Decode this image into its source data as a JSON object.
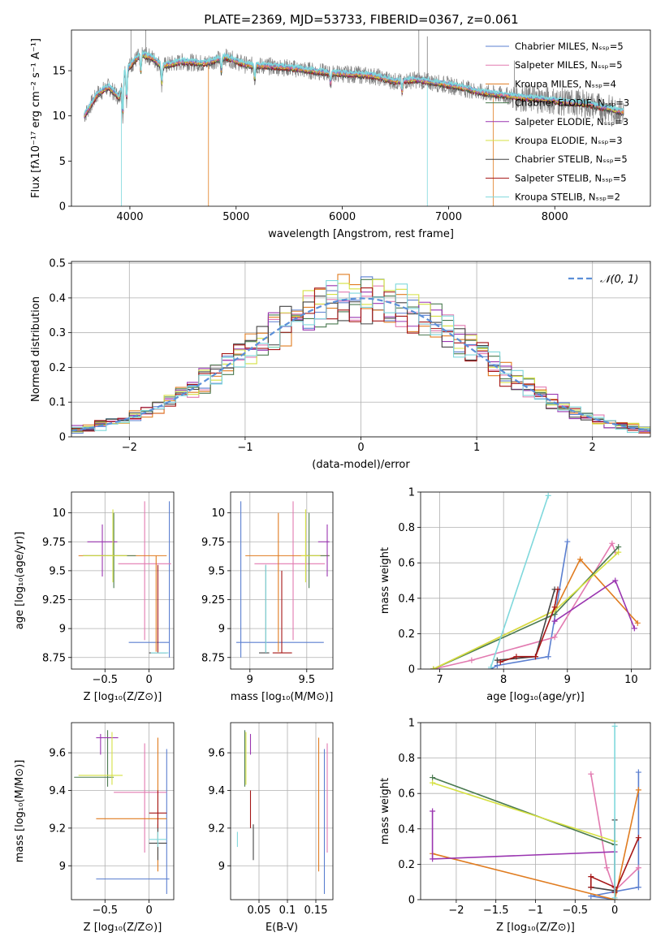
{
  "figure": {
    "title": "PLATE=2369, MJD=53733, FIBERID=0367, z=0.061"
  },
  "colors": {
    "c_miles": "#5b7fd0",
    "s_miles": "#e27ab0",
    "k_miles": "#e07c20",
    "c_elodie": "#4a7a50",
    "s_elodie": "#9a35b0",
    "k_elodie": "#d5e040",
    "c_stelib": "#444444",
    "s_stelib": "#a51616",
    "k_stelib": "#7fd8dc",
    "data": "#808080",
    "normal": "#5b8fd8"
  },
  "chart_data": [
    {
      "id": "spectrum",
      "type": "line",
      "xlabel": "wavelength [Angstrom, rest frame]",
      "ylabel": "Flux [fλ10⁻¹⁷ erg cm⁻² s⁻¹ A⁻¹]",
      "xlim": [
        3450,
        8900
      ],
      "ylim": [
        0,
        19.5
      ],
      "xticks": [
        4000,
        5000,
        6000,
        7000,
        8000
      ],
      "yticks": [
        0,
        5,
        10,
        15
      ],
      "grid": false,
      "legend_position": "top-right",
      "legend": [
        {
          "label": "Chabrier MILES, Nₛₛₚ=5",
          "color_key": "c_miles"
        },
        {
          "label": "Salpeter MILES, Nₛₛₚ=5",
          "color_key": "s_miles"
        },
        {
          "label": "Kroupa MILES, Nₛₛₚ=4",
          "color_key": "k_miles"
        },
        {
          "label": "Chabrier ELODIE, Nₛₛₚ=3",
          "color_key": "c_elodie"
        },
        {
          "label": "Salpeter ELODIE, Nₛₛₚ=3",
          "color_key": "s_elodie"
        },
        {
          "label": "Kroupa ELODIE, Nₛₛₚ=3",
          "color_key": "k_elodie"
        },
        {
          "label": "Chabrier STELIB, Nₛₛₚ=5",
          "color_key": "c_stelib"
        },
        {
          "label": "Salpeter STELIB, Nₛₛₚ=5",
          "color_key": "s_stelib"
        },
        {
          "label": "Kroupa STELIB, Nₛₛₚ=2",
          "color_key": "k_stelib"
        }
      ],
      "continuum_x": [
        3570,
        3700,
        3800,
        3900,
        3950,
        4000,
        4100,
        4200,
        4300,
        4500,
        4700,
        4900,
        5100,
        5300,
        5500,
        5700,
        5900,
        6100,
        6300,
        6500,
        6700,
        6900,
        7100,
        7300,
        7500,
        7700,
        7900,
        8100,
        8300,
        8500,
        8650
      ],
      "continuum_y": [
        10,
        12.5,
        13.2,
        12,
        15,
        15.5,
        16.8,
        16.5,
        15.5,
        16,
        15.8,
        16.5,
        15.6,
        15.5,
        15.3,
        15,
        14.7,
        14.6,
        14.4,
        13.8,
        14,
        13.6,
        13.2,
        12.6,
        12.3,
        12.0,
        11.8,
        11.5,
        11.3,
        10.8,
        10.4
      ]
    },
    {
      "id": "residuals",
      "type": "step",
      "xlabel": "(data-model)/error",
      "ylabel": "Normed distribution",
      "xlim": [
        -2.5,
        2.5
      ],
      "ylim": [
        0,
        0.505
      ],
      "xticks": [
        -2,
        -1,
        0,
        1,
        2
      ],
      "yticks": [
        0.0,
        0.1,
        0.2,
        0.3,
        0.4,
        0.5
      ],
      "grid": true,
      "legend_position": "top-right",
      "legend": [
        {
          "label": "𝒩(0, 1)",
          "color_key": "normal",
          "style": "dashed"
        }
      ],
      "bin_width": 0.1,
      "series_color_keys": [
        "c_miles",
        "s_miles",
        "k_miles",
        "c_elodie",
        "s_elodie",
        "k_elodie",
        "c_stelib",
        "s_stelib",
        "k_stelib"
      ]
    },
    {
      "id": "age_vs_z",
      "type": "errorbar",
      "xlabel": "Z [log₁₀(Z/Z⊙)]",
      "ylabel": "age  [log₁₀(age/yr)]",
      "xlim": [
        -0.88,
        0.28
      ],
      "ylim": [
        8.65,
        10.18
      ],
      "xticks": [
        -0.5,
        0.0
      ],
      "yticks": [
        8.75,
        9.0,
        9.25,
        9.5,
        9.75,
        10.0
      ],
      "grid": true,
      "points": [
        {
          "color_key": "c_miles",
          "x": 0.0,
          "xerr": 0.23,
          "y": 8.88,
          "yerr": 0,
          "ylow": 8.75,
          "yhigh": 10.1,
          "xc": 0.23
        },
        {
          "color_key": "s_miles",
          "x": -0.05,
          "xerr": 0.3,
          "y": 9.56,
          "ylow": 8.9,
          "yhigh": 10.1,
          "xc": -0.05
        },
        {
          "color_key": "k_miles",
          "x": -0.3,
          "xerr": 0.5,
          "y": 9.63,
          "ylow": 8.8,
          "yhigh": 9.63,
          "xc": 0.08
        },
        {
          "color_key": "c_elodie",
          "x": -0.45,
          "xerr": 0.3,
          "y": 9.63,
          "ylow": 9.35,
          "yhigh": 10.0,
          "xc": -0.4
        },
        {
          "color_key": "s_elodie",
          "x": -0.53,
          "xerr": 0.17,
          "y": 9.75,
          "ylow": 9.45,
          "yhigh": 9.9,
          "xc": -0.53
        },
        {
          "color_key": "k_elodie",
          "x": -0.5,
          "xerr": 0.25,
          "y": 9.63,
          "ylow": 9.4,
          "yhigh": 10.03,
          "xc": -0.41
        },
        {
          "color_key": "c_stelib",
          "x": 0.1,
          "xerr": 0.1,
          "y": 8.79,
          "ylow": 8.79,
          "yhigh": 8.79,
          "xc": 0.1
        },
        {
          "color_key": "s_stelib",
          "x": 0.1,
          "xerr": 0.0,
          "y": 8.79,
          "ylow": 8.79,
          "yhigh": 9.55,
          "xc": 0.1
        },
        {
          "color_key": "k_stelib",
          "x": 0.12,
          "xerr": 0.1,
          "y": 8.79,
          "ylow": 8.79,
          "yhigh": 8.79,
          "xc": 0.12
        }
      ]
    },
    {
      "id": "age_vs_mass",
      "type": "errorbar",
      "xlabel": "mass [log₁₀(M/M⊙)]",
      "ylabel": "",
      "xlim": [
        8.83,
        9.73
      ],
      "ylim": [
        8.65,
        10.18
      ],
      "xticks": [
        9.0,
        9.5
      ],
      "yticks": [
        8.75,
        9.0,
        9.25,
        9.5,
        9.75,
        10.0
      ],
      "grid": true,
      "points": [
        {
          "color_key": "c_miles",
          "xlow": 8.88,
          "xhigh": 9.65,
          "y": 8.88,
          "xc": 8.92,
          "ylow": 8.75,
          "yhigh": 10.1
        },
        {
          "color_key": "s_miles",
          "xlow": 9.04,
          "xhigh": 9.66,
          "y": 9.56,
          "xc": 9.38,
          "ylow": 8.9,
          "yhigh": 10.1
        },
        {
          "color_key": "k_miles",
          "xlow": 8.96,
          "xhigh": 9.7,
          "y": 9.63,
          "xc": 9.25,
          "ylow": 8.8,
          "yhigh": 10.0
        },
        {
          "color_key": "c_elodie",
          "xlow": 9.5,
          "xhigh": 9.7,
          "y": 9.63,
          "xc": 9.52,
          "ylow": 9.35,
          "yhigh": 10.0
        },
        {
          "color_key": "s_elodie",
          "xlow": 9.6,
          "xhigh": 9.7,
          "y": 9.75,
          "xc": 9.68,
          "ylow": 9.45,
          "yhigh": 9.9
        },
        {
          "color_key": "k_elodie",
          "xlow": 9.45,
          "xhigh": 9.62,
          "y": 9.63,
          "xc": 9.49,
          "ylow": 9.4,
          "yhigh": 10.03
        },
        {
          "color_key": "c_stelib",
          "xlow": 9.08,
          "xhigh": 9.17,
          "y": 8.79,
          "xc": 9.14,
          "ylow": 8.79,
          "yhigh": 9.55
        },
        {
          "color_key": "s_stelib",
          "xlow": 9.2,
          "xhigh": 9.37,
          "y": 8.79,
          "xc": 9.28,
          "ylow": 8.79,
          "yhigh": 9.5
        },
        {
          "color_key": "k_stelib",
          "xlow": 9.14,
          "xhigh": 9.14,
          "y": 8.79,
          "xc": 9.14,
          "ylow": 8.79,
          "yhigh": 9.55
        }
      ]
    },
    {
      "id": "mass_weight_vs_age",
      "type": "line",
      "xlabel": "age  [log₁₀(age/yr)]",
      "ylabel": "mass weight",
      "xlim": [
        6.7,
        10.3
      ],
      "ylim": [
        0,
        1.0
      ],
      "xticks": [
        7,
        8,
        9,
        10
      ],
      "yticks": [
        0.0,
        0.2,
        0.4,
        0.6,
        0.8,
        1.0
      ],
      "grid": true,
      "series": [
        {
          "color_key": "c_miles",
          "x": [
            7.8,
            7.9,
            8.7,
            9.0
          ],
          "y": [
            0.0,
            0.02,
            0.07,
            0.72
          ]
        },
        {
          "color_key": "s_miles",
          "x": [
            6.9,
            7.5,
            8.8,
            9.7,
            9.75
          ],
          "y": [
            0.0,
            0.05,
            0.18,
            0.71,
            0.66
          ]
        },
        {
          "color_key": "k_miles",
          "x": [
            6.9,
            8.8,
            9.2,
            10.1
          ],
          "y": [
            0.0,
            0.33,
            0.62,
            0.26
          ]
        },
        {
          "color_key": "c_elodie",
          "x": [
            6.9,
            8.8,
            9.8
          ],
          "y": [
            0.0,
            0.31,
            0.69
          ]
        },
        {
          "color_key": "s_elodie",
          "x": [
            8.8,
            9.75,
            10.05
          ],
          "y": [
            0.27,
            0.5,
            0.23
          ]
        },
        {
          "color_key": "k_elodie",
          "x": [
            6.9,
            8.8,
            9.8
          ],
          "y": [
            0.0,
            0.33,
            0.66
          ]
        },
        {
          "color_key": "c_stelib",
          "x": [
            7.9,
            8.5,
            8.8
          ],
          "y": [
            0.05,
            0.07,
            0.45
          ]
        },
        {
          "color_key": "s_stelib",
          "x": [
            7.95,
            8.2,
            8.5,
            8.8,
            8.85
          ],
          "y": [
            0.04,
            0.07,
            0.07,
            0.35,
            0.45
          ]
        },
        {
          "color_key": "k_stelib",
          "x": [
            7.8,
            8.7
          ],
          "y": [
            0.01,
            0.98
          ]
        }
      ]
    },
    {
      "id": "mass_vs_z",
      "type": "errorbar",
      "xlabel": "Z [log₁₀(Z/Z⊙)]",
      "ylabel": "mass [log₁₀(M/M⊙)]",
      "xlim": [
        -0.88,
        0.28
      ],
      "ylim": [
        8.82,
        9.76
      ],
      "xticks": [
        -0.5,
        0.0
      ],
      "yticks": [
        9.0,
        9.2,
        9.4,
        9.6
      ],
      "grid": true,
      "points": [
        {
          "color_key": "c_miles",
          "xlow": -0.6,
          "xhigh": 0.23,
          "y": 8.93,
          "xc": 0.2,
          "ylow": 8.85,
          "yhigh": 9.62
        },
        {
          "color_key": "s_miles",
          "xlow": -0.4,
          "xhigh": 0.2,
          "y": 9.39,
          "xc": -0.05,
          "ylow": 9.07,
          "yhigh": 9.65
        },
        {
          "color_key": "k_miles",
          "xlow": -0.6,
          "xhigh": 0.2,
          "y": 9.25,
          "xc": 0.1,
          "ylow": 8.97,
          "yhigh": 9.68
        },
        {
          "color_key": "c_elodie",
          "xlow": -0.85,
          "xhigh": -0.4,
          "y": 9.47,
          "xc": -0.47,
          "ylow": 9.42,
          "yhigh": 9.72
        },
        {
          "color_key": "s_elodie",
          "xlow": -0.6,
          "xhigh": -0.35,
          "y": 9.68,
          "xc": -0.55,
          "ylow": 9.59,
          "yhigh": 9.7
        },
        {
          "color_key": "k_elodie",
          "xlow": -0.8,
          "xhigh": -0.3,
          "y": 9.48,
          "xc": -0.42,
          "ylow": 9.43,
          "yhigh": 9.71
        },
        {
          "color_key": "c_stelib",
          "xlow": 0.0,
          "xhigh": 0.2,
          "y": 9.12,
          "xc": 0.1,
          "ylow": 9.03,
          "yhigh": 9.22
        },
        {
          "color_key": "s_stelib",
          "xlow": 0.0,
          "xhigh": 0.2,
          "y": 9.28,
          "xc": 0.1,
          "ylow": 9.2,
          "yhigh": 9.4
        },
        {
          "color_key": "k_stelib",
          "xlow": 0.0,
          "xhigh": 0.2,
          "y": 9.14,
          "xc": 0.1,
          "ylow": 9.1,
          "yhigh": 9.18
        }
      ]
    },
    {
      "id": "mass_vs_ebv",
      "type": "errorbar",
      "xlabel": "E(B-V)",
      "ylabel": "",
      "xlim": [
        0.0,
        0.18
      ],
      "ylim": [
        8.82,
        9.76
      ],
      "xticks": [
        0.05,
        0.1,
        0.15
      ],
      "yticks": [
        9.0,
        9.2,
        9.4,
        9.6
      ],
      "grid": true,
      "points": [
        {
          "color_key": "c_miles",
          "xc": 0.165,
          "ylow": 8.85,
          "yhigh": 9.62
        },
        {
          "color_key": "s_miles",
          "xc": 0.17,
          "ylow": 9.07,
          "yhigh": 9.65
        },
        {
          "color_key": "k_miles",
          "xc": 0.155,
          "ylow": 8.97,
          "yhigh": 9.68
        },
        {
          "color_key": "c_elodie",
          "xc": 0.025,
          "ylow": 9.42,
          "yhigh": 9.72
        },
        {
          "color_key": "s_elodie",
          "xc": 0.035,
          "ylow": 9.59,
          "yhigh": 9.7
        },
        {
          "color_key": "k_elodie",
          "xc": 0.027,
          "ylow": 9.43,
          "yhigh": 9.71
        },
        {
          "color_key": "c_stelib",
          "xc": 0.04,
          "ylow": 9.03,
          "yhigh": 9.22
        },
        {
          "color_key": "s_stelib",
          "xc": 0.035,
          "ylow": 9.2,
          "yhigh": 9.4
        },
        {
          "color_key": "k_stelib",
          "xc": 0.012,
          "ylow": 9.1,
          "yhigh": 9.18
        }
      ]
    },
    {
      "id": "mass_weight_vs_z",
      "type": "line",
      "xlabel": "Z [log₁₀(Z/Z⊙)]",
      "ylabel": "mass weight",
      "xlim": [
        -2.45,
        0.45
      ],
      "ylim": [
        0,
        1.0
      ],
      "xticks": [
        -2.0,
        -1.5,
        -1.0,
        -0.5,
        0.0
      ],
      "yticks": [
        0.0,
        0.2,
        0.4,
        0.6,
        0.8,
        1.0
      ],
      "grid": true,
      "series": [
        {
          "color_key": "c_miles",
          "x": [
            0.3,
            0.3,
            -0.3,
            0.0
          ],
          "y": [
            0.72,
            0.07,
            0.02,
            0.0
          ]
        },
        {
          "color_key": "s_miles",
          "x": [
            -0.3,
            -0.1,
            0.0,
            0.3
          ],
          "y": [
            0.71,
            0.18,
            0.05,
            0.18
          ]
        },
        {
          "color_key": "k_miles",
          "x": [
            -2.3,
            0.0,
            0.3
          ],
          "y": [
            0.26,
            0.0,
            0.62
          ]
        },
        {
          "color_key": "c_elodie",
          "x": [
            -2.3,
            0.0
          ],
          "y": [
            0.69,
            0.31
          ]
        },
        {
          "color_key": "s_elodie",
          "x": [
            -2.3,
            -2.3,
            0.0
          ],
          "y": [
            0.5,
            0.23,
            0.27
          ]
        },
        {
          "color_key": "k_elodie",
          "x": [
            -2.3,
            0.0
          ],
          "y": [
            0.66,
            0.33
          ]
        },
        {
          "color_key": "c_stelib",
          "x": [
            -0.3,
            0.0,
            0.0
          ],
          "y": [
            0.07,
            0.05,
            0.45
          ]
        },
        {
          "color_key": "s_stelib",
          "x": [
            -0.3,
            -0.3,
            0.0,
            0.0,
            0.3
          ],
          "y": [
            0.07,
            0.13,
            0.07,
            0.04,
            0.35
          ]
        },
        {
          "color_key": "k_stelib",
          "x": [
            0.0,
            0.0
          ],
          "y": [
            0.01,
            0.98
          ]
        }
      ]
    }
  ]
}
